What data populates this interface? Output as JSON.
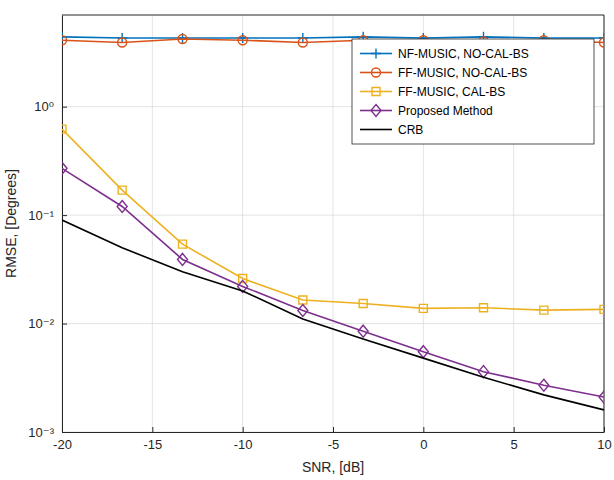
{
  "chart_data": {
    "type": "line",
    "x_label": "SNR, [dB]",
    "y_label": "RMSE, [Degrees]",
    "x": [
      -20,
      -16.67,
      -13.33,
      -10,
      -6.67,
      -3.33,
      0,
      3.33,
      6.67,
      10
    ],
    "xlim": [
      -20,
      10
    ],
    "xticks": [
      -20,
      -15,
      -10,
      -5,
      0,
      5,
      10
    ],
    "ylim": [
      0.001,
      7
    ],
    "yticks": [
      {
        "value": 0.001,
        "label": "10⁻³"
      },
      {
        "value": 0.01,
        "label": "10⁻²"
      },
      {
        "value": 0.1,
        "label": "10⁻¹"
      },
      {
        "value": 1,
        "label": "10⁰"
      }
    ],
    "log": "y",
    "grid": true,
    "legend": "upper right",
    "series": [
      {
        "name": "NF-MUSIC, NO-CAL-BS",
        "color": "#0072bd",
        "marker": "plus",
        "line_style": "solid",
        "values": [
          4.4,
          4.3,
          4.3,
          4.3,
          4.3,
          4.4,
          4.3,
          4.4,
          4.3,
          4.3
        ]
      },
      {
        "name": "FF-MUSIC, NO-CAL-BS",
        "color": "#d95319",
        "marker": "circle",
        "line_style": "solid",
        "values": [
          4.1,
          3.9,
          4.2,
          4.1,
          3.9,
          4.1,
          4.1,
          4.0,
          4.1,
          3.9
        ]
      },
      {
        "name": "FF-MUSIC, CAL-BS",
        "color": "#edb120",
        "marker": "square",
        "line_style": "solid",
        "values": [
          0.62,
          0.17,
          0.054,
          0.026,
          0.0165,
          0.0153,
          0.0138,
          0.014,
          0.0133,
          0.0135
        ]
      },
      {
        "name": "Proposed Method",
        "color": "#7e2f8e",
        "marker": "diamond",
        "line_style": "solid",
        "values": [
          0.27,
          0.12,
          0.039,
          0.022,
          0.0132,
          0.0085,
          0.0055,
          0.0036,
          0.0027,
          0.0021
        ]
      },
      {
        "name": "CRB",
        "color": "#000000",
        "marker": "none",
        "line_style": "solid",
        "values": [
          0.09,
          0.05,
          0.03,
          0.02,
          0.011,
          0.0072,
          0.0048,
          0.0032,
          0.0022,
          0.0016
        ]
      }
    ]
  }
}
